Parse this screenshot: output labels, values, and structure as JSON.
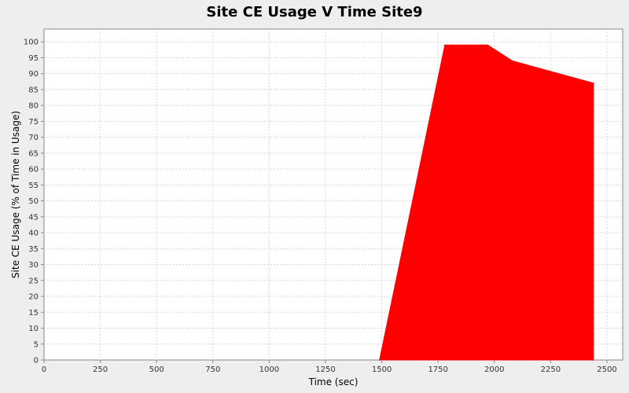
{
  "chart_data": {
    "type": "area",
    "title": "Site CE Usage V Time Site9",
    "xlabel": "Time (sec)",
    "ylabel": "Site CE Usage (% of Time in Usage)",
    "xlim": [
      0,
      2570
    ],
    "ylim": [
      0,
      104
    ],
    "x_ticks": [
      0,
      250,
      500,
      750,
      1000,
      1250,
      1500,
      1750,
      2000,
      2250,
      2500
    ],
    "y_ticks": [
      0,
      5,
      10,
      15,
      20,
      25,
      30,
      35,
      40,
      45,
      50,
      55,
      60,
      65,
      70,
      75,
      80,
      85,
      90,
      95,
      100
    ],
    "grid": true,
    "series": [
      {
        "color": "#ff0000",
        "x": [
          1490,
          1780,
          1970,
          2080,
          2440,
          2440
        ],
        "y": [
          0,
          99,
          99,
          94,
          87,
          0
        ]
      }
    ]
  }
}
